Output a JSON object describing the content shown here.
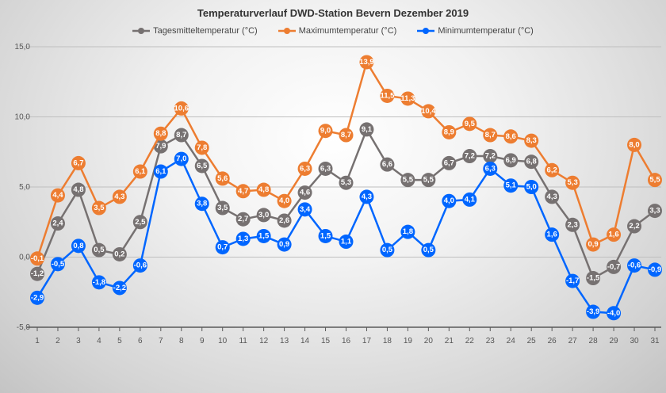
{
  "chart_data": {
    "type": "line",
    "title": "Temperaturverlauf DWD-Station Bevern Dezember 2019",
    "xlabel": "",
    "ylabel": "",
    "x": [
      1,
      2,
      3,
      4,
      5,
      6,
      7,
      8,
      9,
      10,
      11,
      12,
      13,
      14,
      15,
      16,
      17,
      18,
      19,
      20,
      21,
      22,
      23,
      24,
      25,
      26,
      27,
      28,
      29,
      30,
      31
    ],
    "ylim": [
      -5,
      15
    ],
    "yticks": [
      "-5,0",
      "0,0",
      "5,0",
      "10,0",
      "15,0"
    ],
    "grid": true,
    "legend": "top",
    "series": [
      {
        "name": "Tagesmitteltemperatur (°C)",
        "color": "#767171",
        "values": [
          -1.2,
          2.4,
          4.8,
          0.5,
          0.2,
          2.5,
          7.9,
          8.7,
          6.5,
          3.5,
          2.7,
          3.0,
          2.6,
          4.6,
          6.3,
          5.3,
          9.1,
          6.6,
          5.5,
          5.5,
          6.7,
          7.2,
          7.2,
          6.9,
          6.8,
          4.3,
          2.3,
          -1.5,
          -0.7,
          2.2,
          3.3
        ]
      },
      {
        "name": "Maximumtemperatur (°C)",
        "color": "#ed7d31",
        "values": [
          -0.1,
          4.4,
          6.7,
          3.5,
          4.3,
          6.1,
          8.8,
          10.6,
          7.8,
          5.6,
          4.7,
          4.8,
          4.0,
          6.3,
          9.0,
          8.7,
          13.9,
          11.5,
          11.3,
          10.4,
          8.9,
          9.5,
          8.7,
          8.6,
          8.3,
          6.2,
          5.3,
          0.9,
          1.6,
          8.0,
          5.5
        ]
      },
      {
        "name": "Minimumtemperatur (°C)",
        "color": "#0066ff",
        "values": [
          -2.9,
          -0.5,
          0.8,
          -1.8,
          -2.2,
          -0.6,
          6.1,
          7.0,
          3.8,
          0.7,
          1.3,
          1.5,
          0.9,
          3.4,
          1.5,
          1.1,
          4.3,
          0.5,
          1.8,
          0.5,
          4.0,
          4.1,
          6.3,
          5.1,
          5.0,
          1.6,
          -1.7,
          -3.9,
          -4.0,
          -0.6,
          -0.9
        ]
      }
    ]
  }
}
